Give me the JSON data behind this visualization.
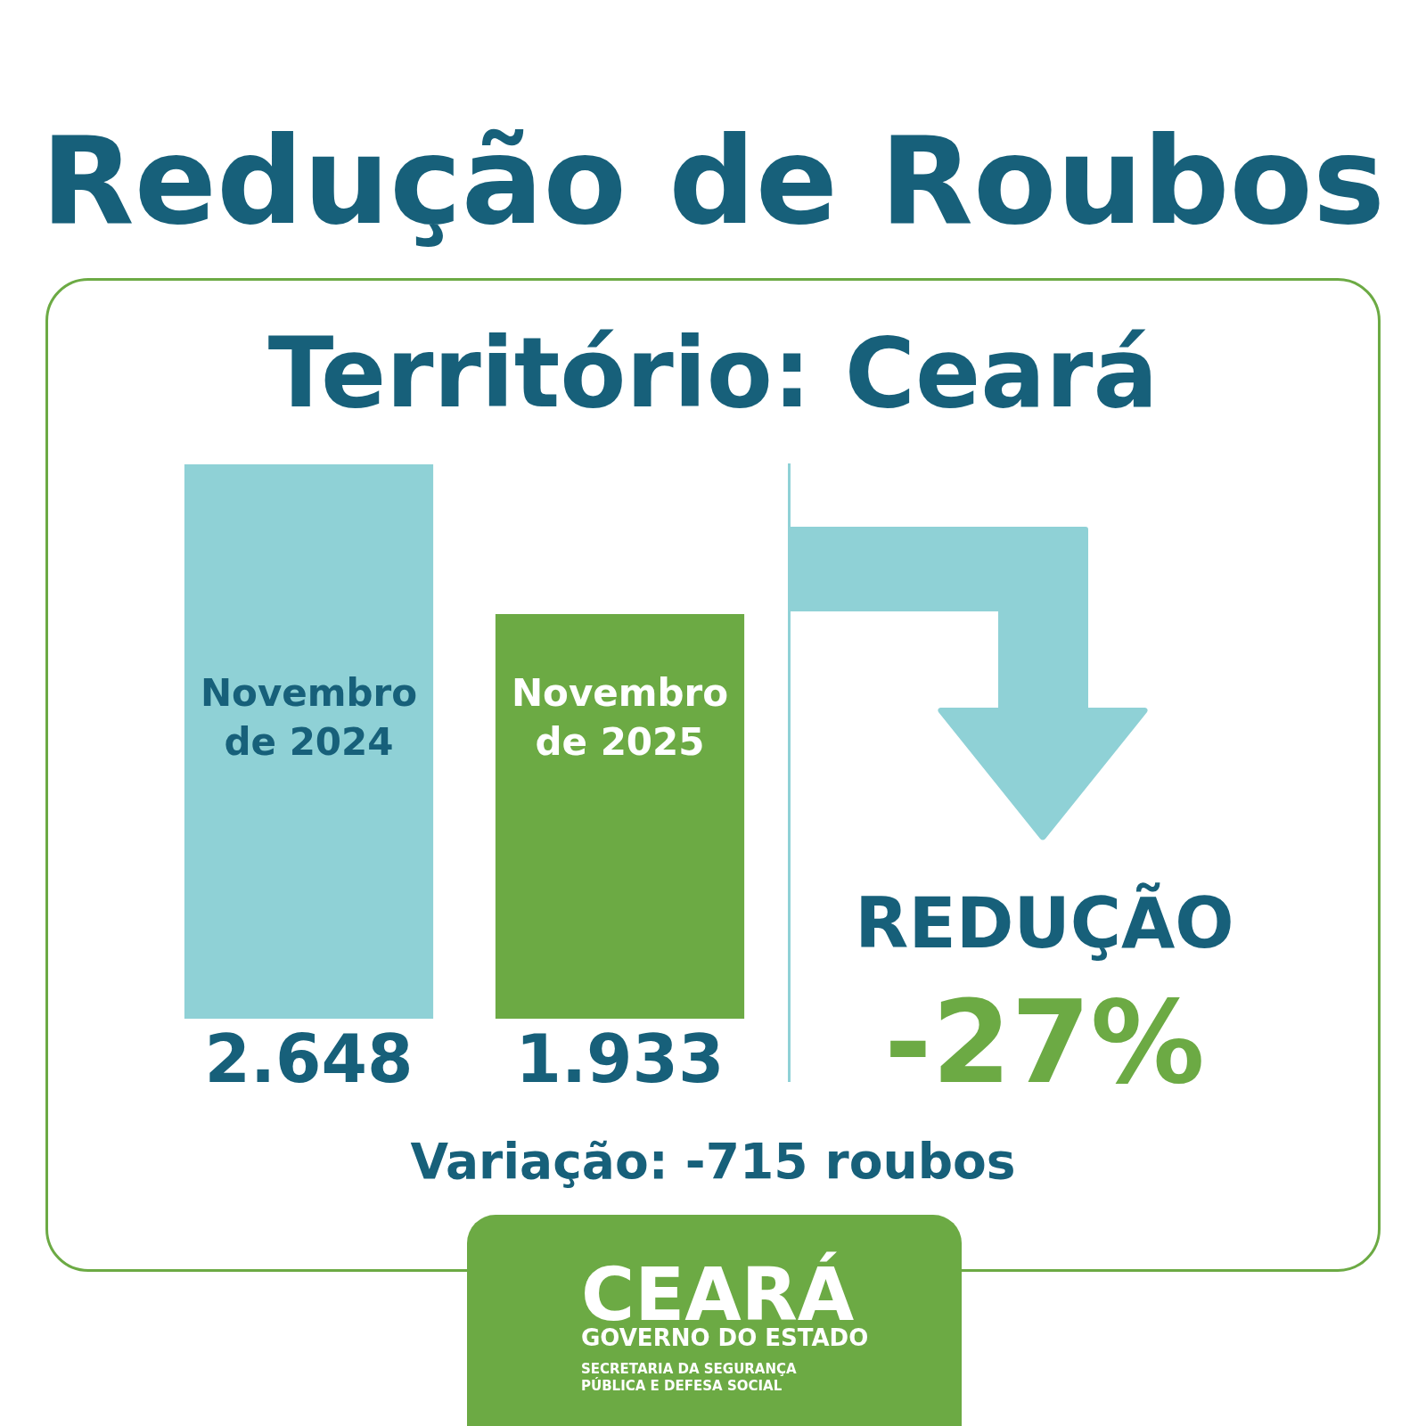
{
  "chart_data": {
    "type": "bar",
    "title": "Redução de Roubos",
    "subtitle": "Território: Ceará",
    "categories": [
      "Novembro de 2024",
      "Novembro de 2025"
    ],
    "values": [
      2648,
      1933
    ],
    "colors": [
      "#8fd1d6",
      "#6caa44"
    ],
    "value_labels": [
      "2.648",
      "1.933"
    ],
    "tick_labels": "x",
    "annotations": [
      "REDUÇÃO",
      "-27%",
      "Variação: -715 roubos",
      "CEARÁ",
      "GOVERNO DO ESTADO",
      "SECRETARIA DA SEGURANÇA",
      "PÚBLICA E DEFESA SOCIAL"
    ]
  }
}
